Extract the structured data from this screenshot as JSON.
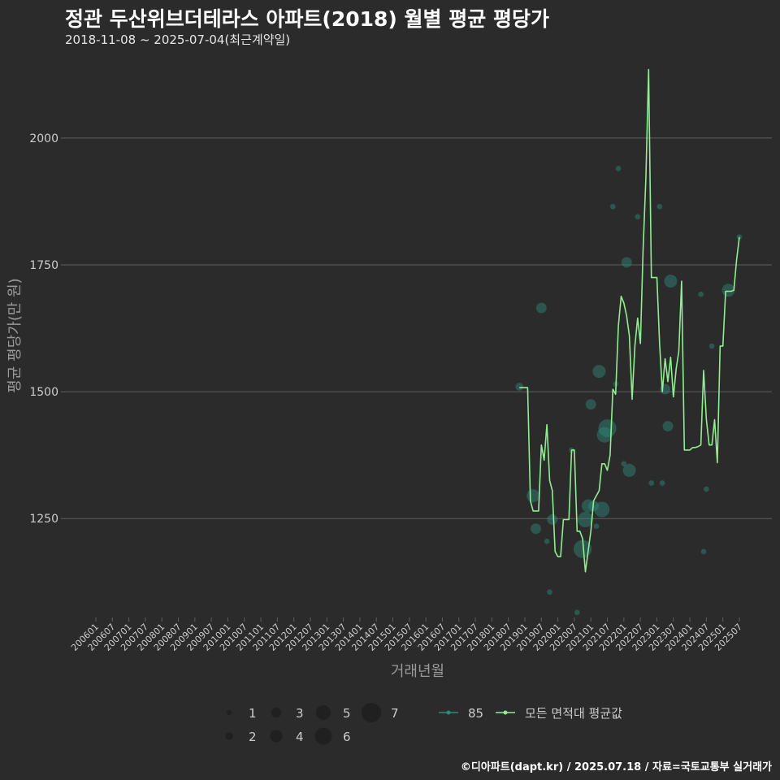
{
  "title": "정관 두산위브더테라스 아파트(2018) 월별 평균 평당가",
  "subtitle": "2018-11-08 ~ 2025-07-04(최근계약일)",
  "caption": "©디아파트(dapt.kr) / 2025.07.18 / 자료=국토교통부 실거래가",
  "colors": {
    "background": "#2b2b2c",
    "grid": "#5f5f62",
    "avg_line": "#90ee90",
    "point_fill": "#2e8b7a",
    "text": "#cccccc"
  },
  "chart_data": {
    "type": "line",
    "title": "정관 두산위브더테라스 아파트(2018) 월별 평균 평당가",
    "subtitle": "2018-11-08 ~ 2025-07-04(최근계약일)",
    "xlabel": "거래년월",
    "ylabel": "평균 평당가(만 원)",
    "xlim": [
      "2006-01",
      "2025-07"
    ],
    "ylim": [
      1055,
      2160
    ],
    "yticks": [
      1250,
      1500,
      1750,
      2000
    ],
    "xticks": [
      "200601",
      "200607",
      "200701",
      "200707",
      "200801",
      "200807",
      "200901",
      "200907",
      "201001",
      "201007",
      "201101",
      "201107",
      "201201",
      "201207",
      "201301",
      "201307",
      "201401",
      "201407",
      "201501",
      "201507",
      "201601",
      "201607",
      "201701",
      "201707",
      "201801",
      "201807",
      "201901",
      "201907",
      "202001",
      "202007",
      "202101",
      "202107",
      "202201",
      "202207",
      "202301",
      "202307",
      "202401",
      "202407",
      "202501",
      "202507"
    ],
    "grid": "horizontal",
    "legend": {
      "size_title": "",
      "sizes": [
        1,
        2,
        3,
        4,
        5,
        6,
        7
      ],
      "series": [
        "85",
        "모든 면적대 평균값"
      ],
      "position": "bottom"
    },
    "series": [
      {
        "name": "85",
        "type": "scatter",
        "points": [
          [
            "2018-11",
            1510,
            2
          ],
          [
            "2019-04",
            1295,
            4
          ],
          [
            "2019-05",
            1230,
            3
          ],
          [
            "2019-07",
            1665,
            3
          ],
          [
            "2019-09",
            1205,
            1
          ],
          [
            "2019-10",
            1105,
            1
          ],
          [
            "2019-11",
            1248,
            3
          ],
          [
            "2020-06",
            1385,
            1
          ],
          [
            "2020-08",
            1065,
            1
          ],
          [
            "2020-10",
            1190,
            6
          ],
          [
            "2020-11",
            1248,
            5
          ],
          [
            "2020-12",
            1275,
            4
          ],
          [
            "2021-01",
            1475,
            3
          ],
          [
            "2021-02",
            1275,
            3
          ],
          [
            "2021-03",
            1235,
            1
          ],
          [
            "2021-04",
            1540,
            4
          ],
          [
            "2021-05",
            1268,
            5
          ],
          [
            "2021-06",
            1415,
            5
          ],
          [
            "2021-07",
            1428,
            6
          ],
          [
            "2021-09",
            1865,
            1
          ],
          [
            "2021-10",
            1515,
            1
          ],
          [
            "2021-11",
            1940,
            1
          ],
          [
            "2022-01",
            1358,
            1
          ],
          [
            "2022-02",
            1755,
            3
          ],
          [
            "2022-03",
            1345,
            4
          ],
          [
            "2022-06",
            1845,
            1
          ],
          [
            "2022-11",
            1320,
            1
          ],
          [
            "2023-02",
            1865,
            1
          ],
          [
            "2023-03",
            1320,
            1
          ],
          [
            "2023-04",
            1505,
            3
          ],
          [
            "2023-05",
            1432,
            3
          ],
          [
            "2023-06",
            1718,
            4
          ],
          [
            "2024-05",
            1692,
            1
          ],
          [
            "2024-06",
            1185,
            1
          ],
          [
            "2024-07",
            1308,
            1
          ],
          [
            "2024-09",
            1590,
            1
          ],
          [
            "2025-03",
            1700,
            4
          ],
          [
            "2025-07",
            1805,
            1
          ]
        ]
      },
      {
        "name": "모든 면적대 평균값",
        "type": "line",
        "x": [
          "2018-11",
          "2018-12",
          "2019-01",
          "2019-02",
          "2019-03",
          "2019-04",
          "2019-05",
          "2019-06",
          "2019-07",
          "2019-08",
          "2019-09",
          "2019-10",
          "2019-11",
          "2019-12",
          "2020-01",
          "2020-02",
          "2020-03",
          "2020-04",
          "2020-05",
          "2020-06",
          "2020-07",
          "2020-08",
          "2020-09",
          "2020-10",
          "2020-11",
          "2020-12",
          "2021-01",
          "2021-02",
          "2021-03",
          "2021-04",
          "2021-05",
          "2021-06",
          "2021-07",
          "2021-08",
          "2021-09",
          "2021-10",
          "2021-11",
          "2021-12",
          "2022-01",
          "2022-02",
          "2022-03",
          "2022-04",
          "2022-05",
          "2022-06",
          "2022-07",
          "2022-08",
          "2022-09",
          "2022-10",
          "2022-11",
          "2022-12",
          "2023-01",
          "2023-02",
          "2023-03",
          "2023-04",
          "2023-05",
          "2023-06",
          "2023-07",
          "2023-08",
          "2023-09",
          "2023-10",
          "2023-11",
          "2023-12",
          "2024-01",
          "2024-02",
          "2024-03",
          "2024-04",
          "2024-05",
          "2024-06",
          "2024-07",
          "2024-08",
          "2024-09",
          "2024-10",
          "2024-11",
          "2024-12",
          "2025-01",
          "2025-02",
          "2025-03",
          "2025-04",
          "2025-05",
          "2025-06",
          "2025-07"
        ],
        "values": [
          1508,
          1508,
          1508,
          1508,
          1285,
          1265,
          1265,
          1265,
          1395,
          1365,
          1435,
          1325,
          1305,
          1185,
          1175,
          1175,
          1248,
          1248,
          1248,
          1385,
          1385,
          1225,
          1225,
          1210,
          1145,
          1185,
          1225,
          1285,
          1295,
          1305,
          1358,
          1358,
          1345,
          1375,
          1505,
          1495,
          1630,
          1688,
          1675,
          1650,
          1610,
          1485,
          1590,
          1645,
          1595,
          1780,
          1920,
          2135,
          1725,
          1725,
          1725,
          1595,
          1500,
          1565,
          1520,
          1568,
          1490,
          1545,
          1580,
          1718,
          1385,
          1385,
          1385,
          1390,
          1390,
          1392,
          1395,
          1542,
          1445,
          1395,
          1395,
          1445,
          1360,
          1590,
          1590,
          1698,
          1698,
          1698,
          1700,
          1760,
          1805
        ]
      }
    ]
  },
  "axes": {
    "yticklabels": [
      "1250",
      "1500",
      "1750",
      "2000"
    ]
  }
}
